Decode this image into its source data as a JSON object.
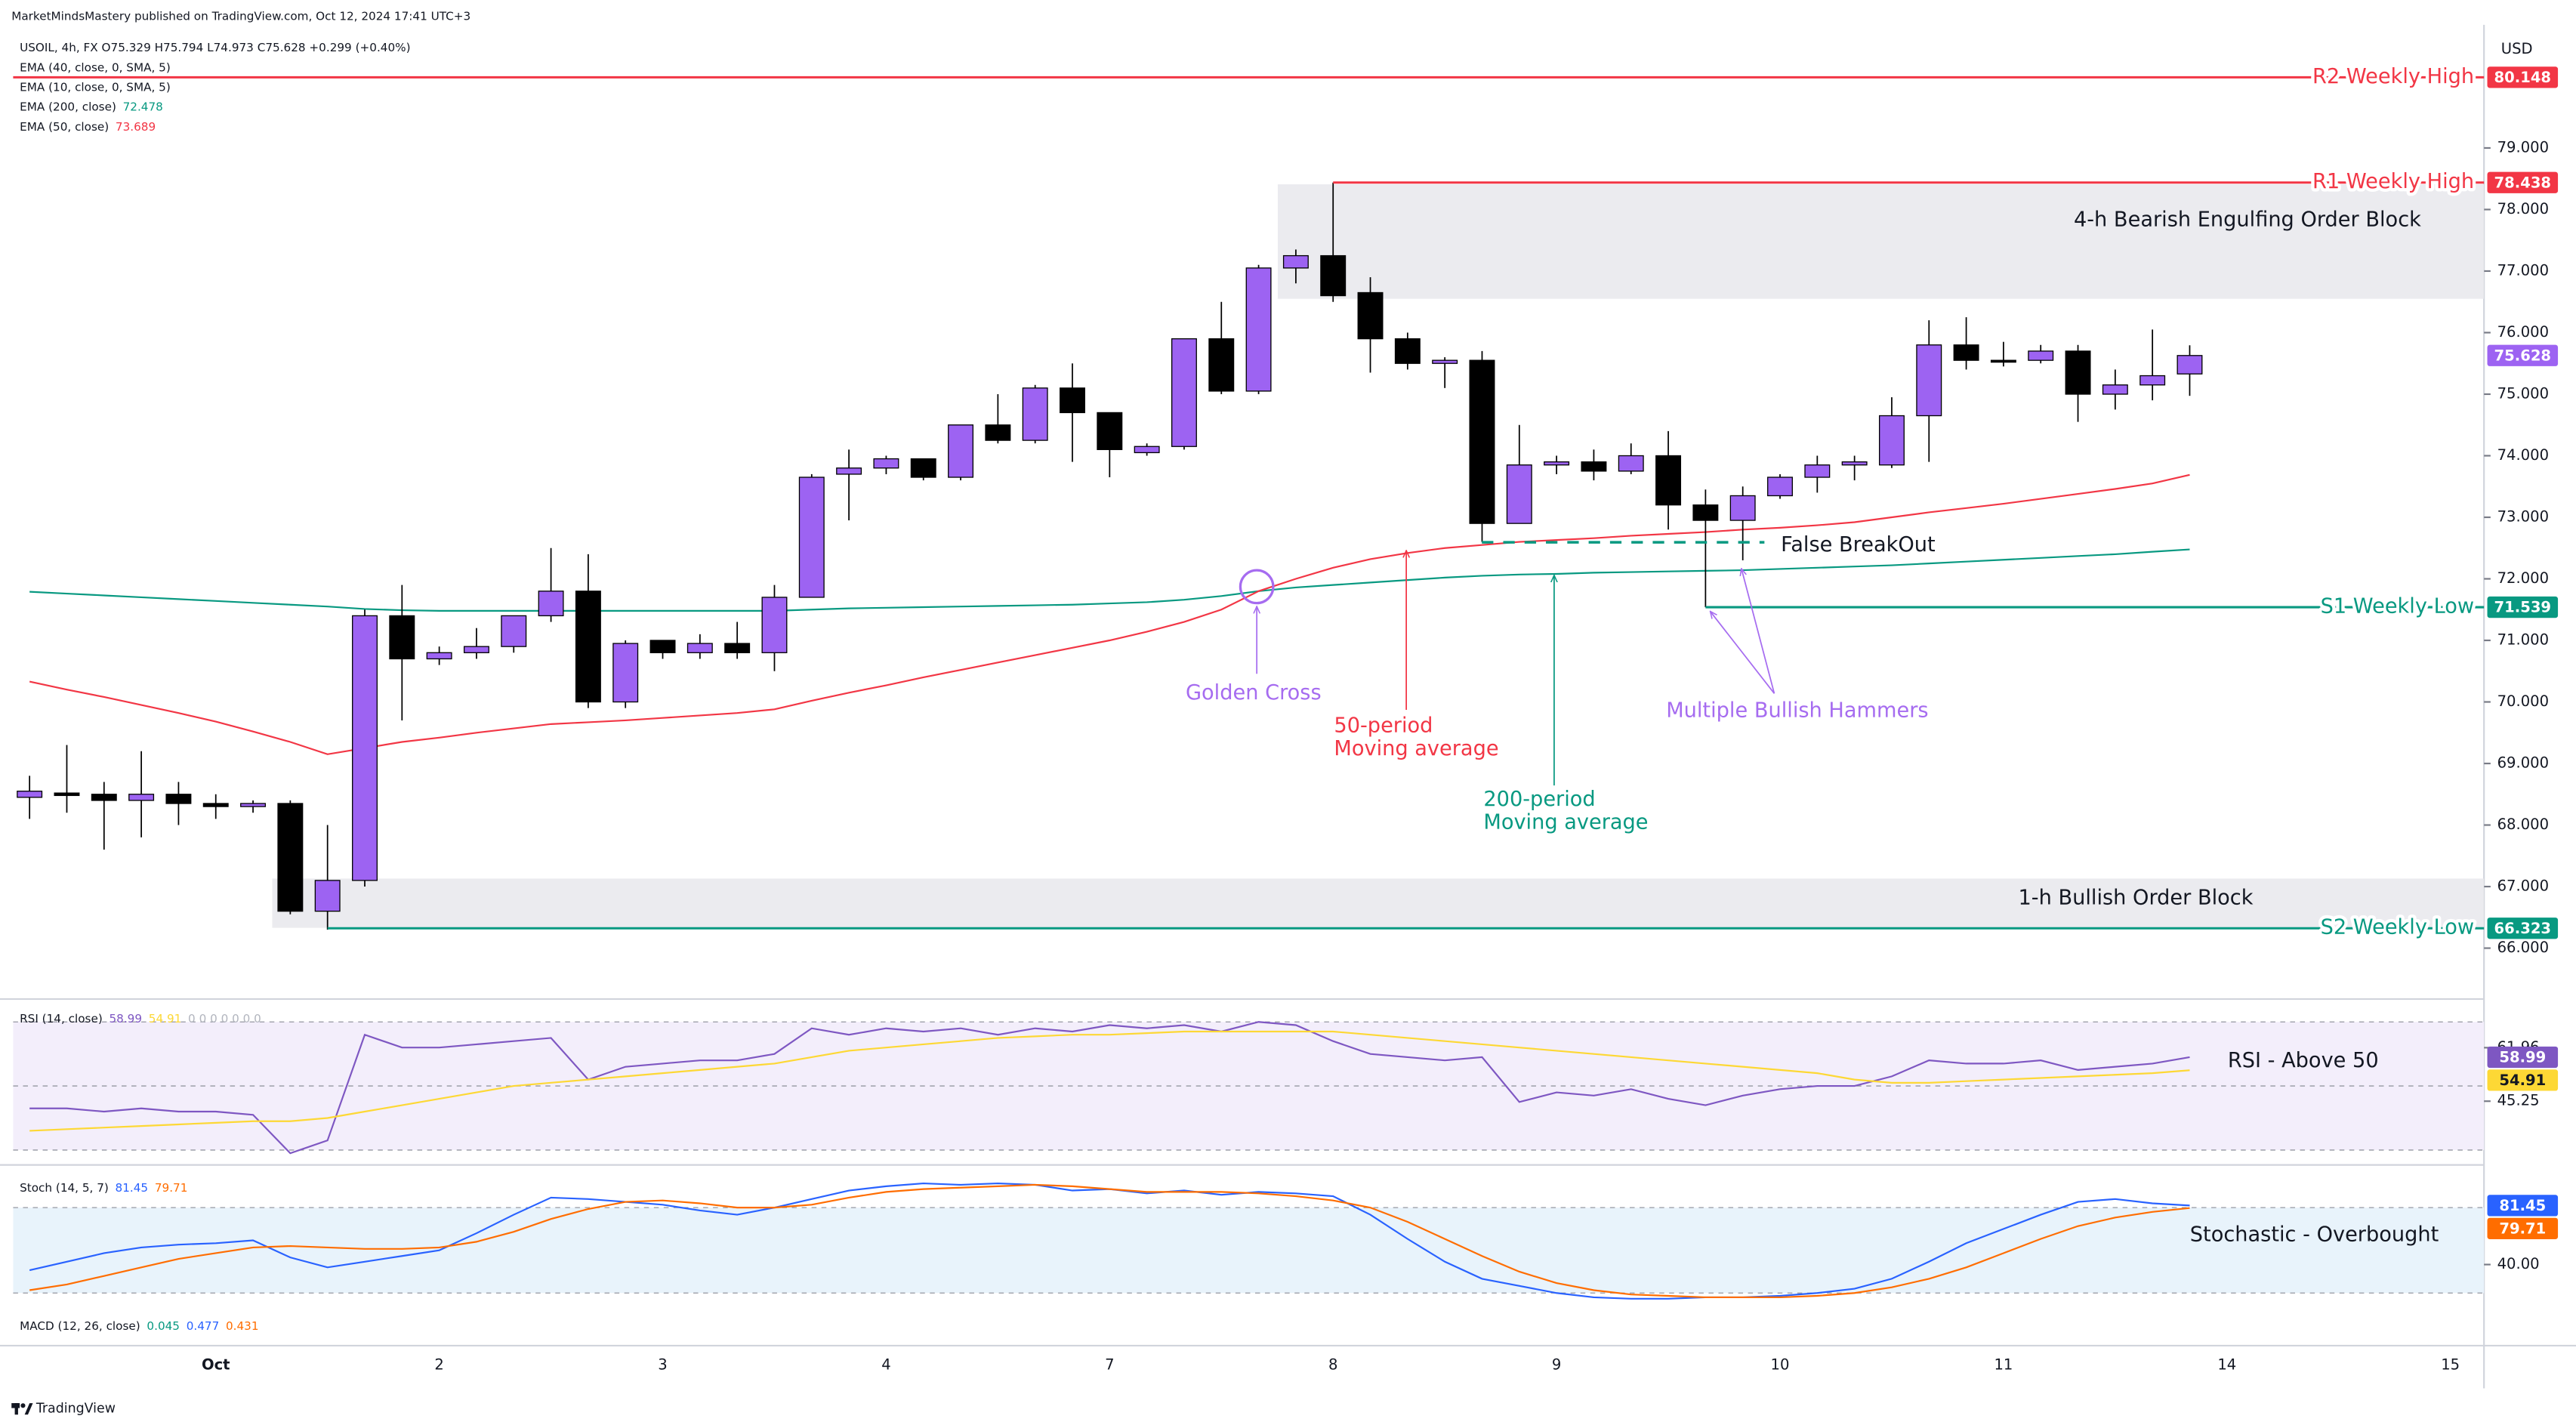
{
  "chart_data": {
    "type": "candlestick",
    "header": "MarketMindsMastery published on TradingView.com, Oct 12, 2024 17:41 UTC+3",
    "symbol_line": "USOIL, 4h, FX  O75.329  H75.794  L74.973  C75.628  +0.299 (+0.40%)",
    "indicator_labels": [
      "EMA (40, close, 0, SMA, 5)",
      "EMA (10, close, 0, SMA, 5)"
    ],
    "y_unit": "USD",
    "footer": "TradingView",
    "up_color": "#9d63f2",
    "down_color": "#000000",
    "categories": [
      null,
      null,
      null,
      null,
      null,
      "Oct",
      null,
      null,
      null,
      null,
      null,
      "2",
      null,
      null,
      null,
      null,
      null,
      "3",
      null,
      null,
      null,
      null,
      null,
      "4",
      null,
      null,
      null,
      null,
      null,
      "7",
      null,
      null,
      null,
      null,
      null,
      "8",
      null,
      null,
      null,
      null,
      null,
      "9",
      null,
      null,
      null,
      null,
      null,
      "10",
      null,
      null,
      null,
      null,
      null,
      "11",
      null,
      null,
      null,
      null,
      null,
      "14",
      null,
      null,
      null,
      null,
      null,
      "15"
    ],
    "open": [
      68.45,
      68.52,
      68.5,
      68.4,
      68.5,
      68.35,
      68.3,
      68.35,
      66.6,
      67.1,
      71.4,
      70.7,
      70.8,
      70.9,
      71.4,
      71.8,
      70.0,
      71.0,
      70.8,
      70.95,
      70.8,
      71.7,
      73.7,
      73.8,
      73.95,
      73.65,
      74.5,
      74.25,
      75.1,
      74.7,
      74.05,
      74.15,
      75.9,
      75.05,
      77.05,
      77.25,
      76.65,
      75.9,
      75.5,
      75.55,
      72.9,
      73.85,
      73.9,
      73.75,
      74.0,
      73.2,
      72.95,
      73.35,
      73.65,
      73.85,
      73.85,
      74.65,
      75.8,
      75.55,
      75.55,
      75.7,
      75.0,
      75.15,
      75.329,
      null,
      null,
      null,
      null,
      null,
      null,
      null
    ],
    "high": [
      68.8,
      69.3,
      68.7,
      69.2,
      68.7,
      68.5,
      68.4,
      68.4,
      68.0,
      71.5,
      71.9,
      70.9,
      71.2,
      71.4,
      72.5,
      72.4,
      71.0,
      71.0,
      71.1,
      71.3,
      71.9,
      73.7,
      74.1,
      74.0,
      73.95,
      74.5,
      75.0,
      75.15,
      75.5,
      74.7,
      74.2,
      75.9,
      76.5,
      77.1,
      77.35,
      78.438,
      76.9,
      76.0,
      75.6,
      75.7,
      74.5,
      74.0,
      74.1,
      74.2,
      74.4,
      73.45,
      73.5,
      73.7,
      74.0,
      74.0,
      74.95,
      76.2,
      76.25,
      75.85,
      75.8,
      75.8,
      75.4,
      76.05,
      75.794,
      null,
      null,
      null,
      null,
      null,
      null,
      null
    ],
    "low": [
      68.1,
      68.2,
      67.6,
      67.8,
      68.0,
      68.1,
      68.2,
      66.55,
      66.3,
      67.0,
      69.7,
      70.6,
      70.7,
      70.8,
      71.3,
      69.9,
      69.9,
      70.7,
      70.7,
      70.7,
      70.5,
      71.7,
      72.95,
      73.7,
      73.6,
      73.6,
      74.2,
      74.2,
      73.9,
      73.65,
      74.0,
      74.1,
      75.0,
      75.0,
      76.8,
      76.5,
      75.35,
      75.4,
      75.1,
      72.6,
      72.9,
      73.7,
      73.6,
      73.7,
      72.8,
      71.539,
      72.3,
      73.3,
      73.4,
      73.6,
      73.8,
      73.9,
      75.4,
      75.45,
      75.5,
      74.55,
      74.75,
      74.9,
      74.973,
      null,
      null,
      null,
      null,
      null,
      null,
      null
    ],
    "close": [
      68.55,
      68.48,
      68.4,
      68.5,
      68.35,
      68.3,
      68.35,
      66.6,
      67.1,
      71.4,
      70.7,
      70.8,
      70.9,
      71.4,
      71.8,
      70.0,
      70.95,
      70.8,
      70.95,
      70.8,
      71.7,
      73.65,
      73.8,
      73.95,
      73.65,
      74.5,
      74.25,
      75.1,
      74.7,
      74.1,
      74.15,
      75.9,
      75.05,
      77.05,
      77.25,
      76.6,
      75.9,
      75.5,
      75.55,
      72.9,
      73.85,
      73.9,
      73.75,
      74.0,
      73.2,
      72.95,
      73.35,
      73.65,
      73.85,
      73.9,
      74.65,
      75.8,
      75.55,
      75.52,
      75.7,
      75.0,
      75.15,
      75.3,
      75.628,
      null,
      null,
      null,
      null,
      null,
      null,
      null
    ],
    "series": [
      {
        "name": "EMA (200, close)",
        "color": "#089981",
        "values": [
          71.79,
          71.76,
          71.73,
          71.7,
          71.67,
          71.64,
          71.61,
          71.58,
          71.55,
          71.51,
          71.49,
          71.48,
          71.48,
          71.48,
          71.48,
          71.48,
          71.48,
          71.48,
          71.48,
          71.48,
          71.48,
          71.5,
          71.52,
          71.53,
          71.54,
          71.55,
          71.56,
          71.57,
          71.58,
          71.6,
          71.62,
          71.66,
          71.72,
          71.8,
          71.86,
          71.9,
          71.94,
          71.98,
          72.02,
          72.05,
          72.07,
          72.08,
          72.1,
          72.11,
          72.12,
          72.13,
          72.14,
          72.16,
          72.18,
          72.2,
          72.22,
          72.25,
          72.28,
          72.31,
          72.34,
          72.37,
          72.4,
          72.44,
          72.478,
          null,
          null,
          null,
          null,
          null,
          null,
          null
        ]
      },
      {
        "name": "EMA (50, close)",
        "color": "#f23645",
        "values": [
          70.33,
          70.2,
          70.08,
          69.95,
          69.82,
          69.68,
          69.52,
          69.35,
          69.15,
          69.25,
          69.35,
          69.42,
          69.5,
          69.57,
          69.64,
          69.67,
          69.7,
          69.74,
          69.78,
          69.82,
          69.88,
          70.02,
          70.15,
          70.27,
          70.4,
          70.52,
          70.64,
          70.76,
          70.88,
          71.0,
          71.14,
          71.3,
          71.5,
          71.8,
          72.0,
          72.18,
          72.32,
          72.42,
          72.5,
          72.55,
          72.6,
          72.63,
          72.66,
          72.7,
          72.73,
          72.76,
          72.8,
          72.83,
          72.87,
          72.92,
          73.0,
          73.08,
          73.15,
          73.22,
          73.3,
          73.38,
          73.46,
          73.55,
          73.689,
          null,
          null,
          null,
          null,
          null,
          null,
          null
        ]
      }
    ],
    "ylim": [
      65.2,
      81
    ],
    "yticks": [
      {
        "value": 66,
        "label": "66.000"
      },
      {
        "value": 67,
        "label": "67.000"
      },
      {
        "value": 68,
        "label": "68.000"
      },
      {
        "value": 69,
        "label": "69.000"
      },
      {
        "value": 70,
        "label": "70.000"
      },
      {
        "value": 71,
        "label": "71.000"
      },
      {
        "value": 72,
        "label": "72.000"
      },
      {
        "value": 73,
        "label": "73.000"
      },
      {
        "value": 74,
        "label": "74.000"
      },
      {
        "value": 75,
        "label": "75.000"
      },
      {
        "value": 76,
        "label": "76.000"
      },
      {
        "value": 77,
        "label": "77.000"
      },
      {
        "value": 78,
        "label": "78.000"
      },
      {
        "value": 79,
        "label": "79.000"
      }
    ],
    "levels": [
      {
        "label": "R2 Weekly High",
        "value": 80.148,
        "color": "#f23645"
      },
      {
        "label": "R1 Weekly High",
        "value": 78.438,
        "color": "#f23645"
      },
      {
        "label": "S1 Weekly Low",
        "value": 71.539,
        "color": "#089981"
      },
      {
        "label": "S2 Weekly Low",
        "value": 66.323,
        "color": "#089981"
      }
    ],
    "zones": [
      {
        "label": "4-h Bearish Engulfing Order Block",
        "top": 78.41,
        "bottom": 76.55
      },
      {
        "label": "1-h Bullish Order Block",
        "top": 67.13,
        "bottom": 66.33
      }
    ],
    "annotations": [
      {
        "lines": [
          "Golden Cross"
        ],
        "color": "#a66cf0"
      },
      {
        "lines": [
          "50-period",
          "Moving average"
        ],
        "color": "#f23645"
      },
      {
        "lines": [
          "200-period",
          "Moving average"
        ],
        "color": "#089981"
      },
      {
        "lines": [
          "False BreakOut"
        ],
        "color": "#131722"
      },
      {
        "lines": [
          "Multiple Bullish Hammers"
        ],
        "color": "#a66cf0"
      }
    ],
    "rsi": {
      "name": "RSI (14, close)",
      "extra": "0 0 0 0 0 0 0",
      "annotation": "RSI -  Above 50",
      "ylim": [
        27.4,
        75.1
      ],
      "yticks": [
        61.96,
        45.25
      ],
      "bands": [
        70,
        50,
        30
      ],
      "series": [
        {
          "color": "#7e57c2",
          "values": [
            43,
            43,
            42,
            43,
            42,
            42,
            41,
            29,
            33,
            66,
            62,
            62,
            63,
            64,
            65,
            52,
            56,
            57,
            58,
            58,
            60,
            68,
            66,
            68,
            67,
            68,
            66,
            68,
            67,
            69,
            68,
            69,
            67,
            70,
            69,
            64,
            60,
            59,
            58,
            59,
            45,
            48,
            47,
            49,
            46,
            44,
            47,
            49,
            50,
            50,
            53,
            58,
            57,
            57,
            58,
            55,
            56,
            57,
            58.99,
            null,
            null,
            null,
            null,
            null,
            null,
            null
          ]
        },
        {
          "color": "#fdd835",
          "values": [
            36,
            36.5,
            37,
            37.5,
            38,
            38.5,
            39,
            39,
            40,
            42,
            44,
            46,
            48,
            50,
            51,
            52,
            53,
            54,
            55,
            56,
            57,
            59,
            61,
            62,
            63,
            64,
            65,
            65.5,
            66,
            66,
            66.5,
            67,
            67,
            67,
            67,
            67,
            66,
            65,
            64,
            63,
            62,
            61,
            60,
            59,
            58,
            57,
            56,
            55,
            54,
            52,
            51,
            51,
            51.5,
            52,
            52.5,
            53,
            53.5,
            54,
            54.91,
            null,
            null,
            null,
            null,
            null,
            null,
            null
          ]
        }
      ]
    },
    "stoch": {
      "name": "Stoch (14, 5, 7)",
      "annotation": "Stochastic - Overbought",
      "ylim": [
        -15.8,
        106.5
      ],
      "yticks": [
        {
          "value": 40,
          "label": "40.00"
        }
      ],
      "bands": [
        80,
        20
      ],
      "series": [
        {
          "color": "#2962ff",
          "values": [
            36,
            42,
            48,
            52,
            54,
            55,
            57,
            45,
            38,
            42,
            46,
            50,
            62,
            75,
            87,
            86,
            84,
            82,
            78,
            75,
            80,
            86,
            92,
            95,
            97,
            96,
            97,
            96,
            92,
            93,
            90,
            92,
            89,
            91,
            90,
            88,
            75,
            58,
            42,
            30,
            25,
            20,
            17,
            16,
            16,
            17,
            17,
            18,
            20,
            23,
            30,
            42,
            55,
            65,
            75,
            84,
            86,
            83,
            81.45,
            null,
            null,
            null,
            null,
            null,
            null,
            null
          ]
        },
        {
          "color": "#ff6d00",
          "values": [
            22,
            26,
            32,
            38,
            44,
            48,
            52,
            53,
            52,
            51,
            51,
            52,
            56,
            63,
            72,
            79,
            84,
            85,
            83,
            80,
            80,
            82,
            87,
            91,
            93,
            94,
            95,
            96,
            95,
            93,
            91,
            91,
            91,
            90,
            88,
            85,
            80,
            70,
            58,
            46,
            35,
            27,
            22,
            19,
            18,
            17,
            17,
            17,
            18,
            20,
            24,
            30,
            38,
            48,
            58,
            67,
            73,
            77,
            79.71,
            null,
            null,
            null,
            null,
            null,
            null,
            null
          ]
        }
      ]
    },
    "macd": {
      "name": "MACD (12, 26, close)",
      "values": [
        0.045,
        0.477,
        0.431
      ],
      "colors": [
        "#089981",
        "#2962ff",
        "#ff6d00"
      ]
    }
  }
}
